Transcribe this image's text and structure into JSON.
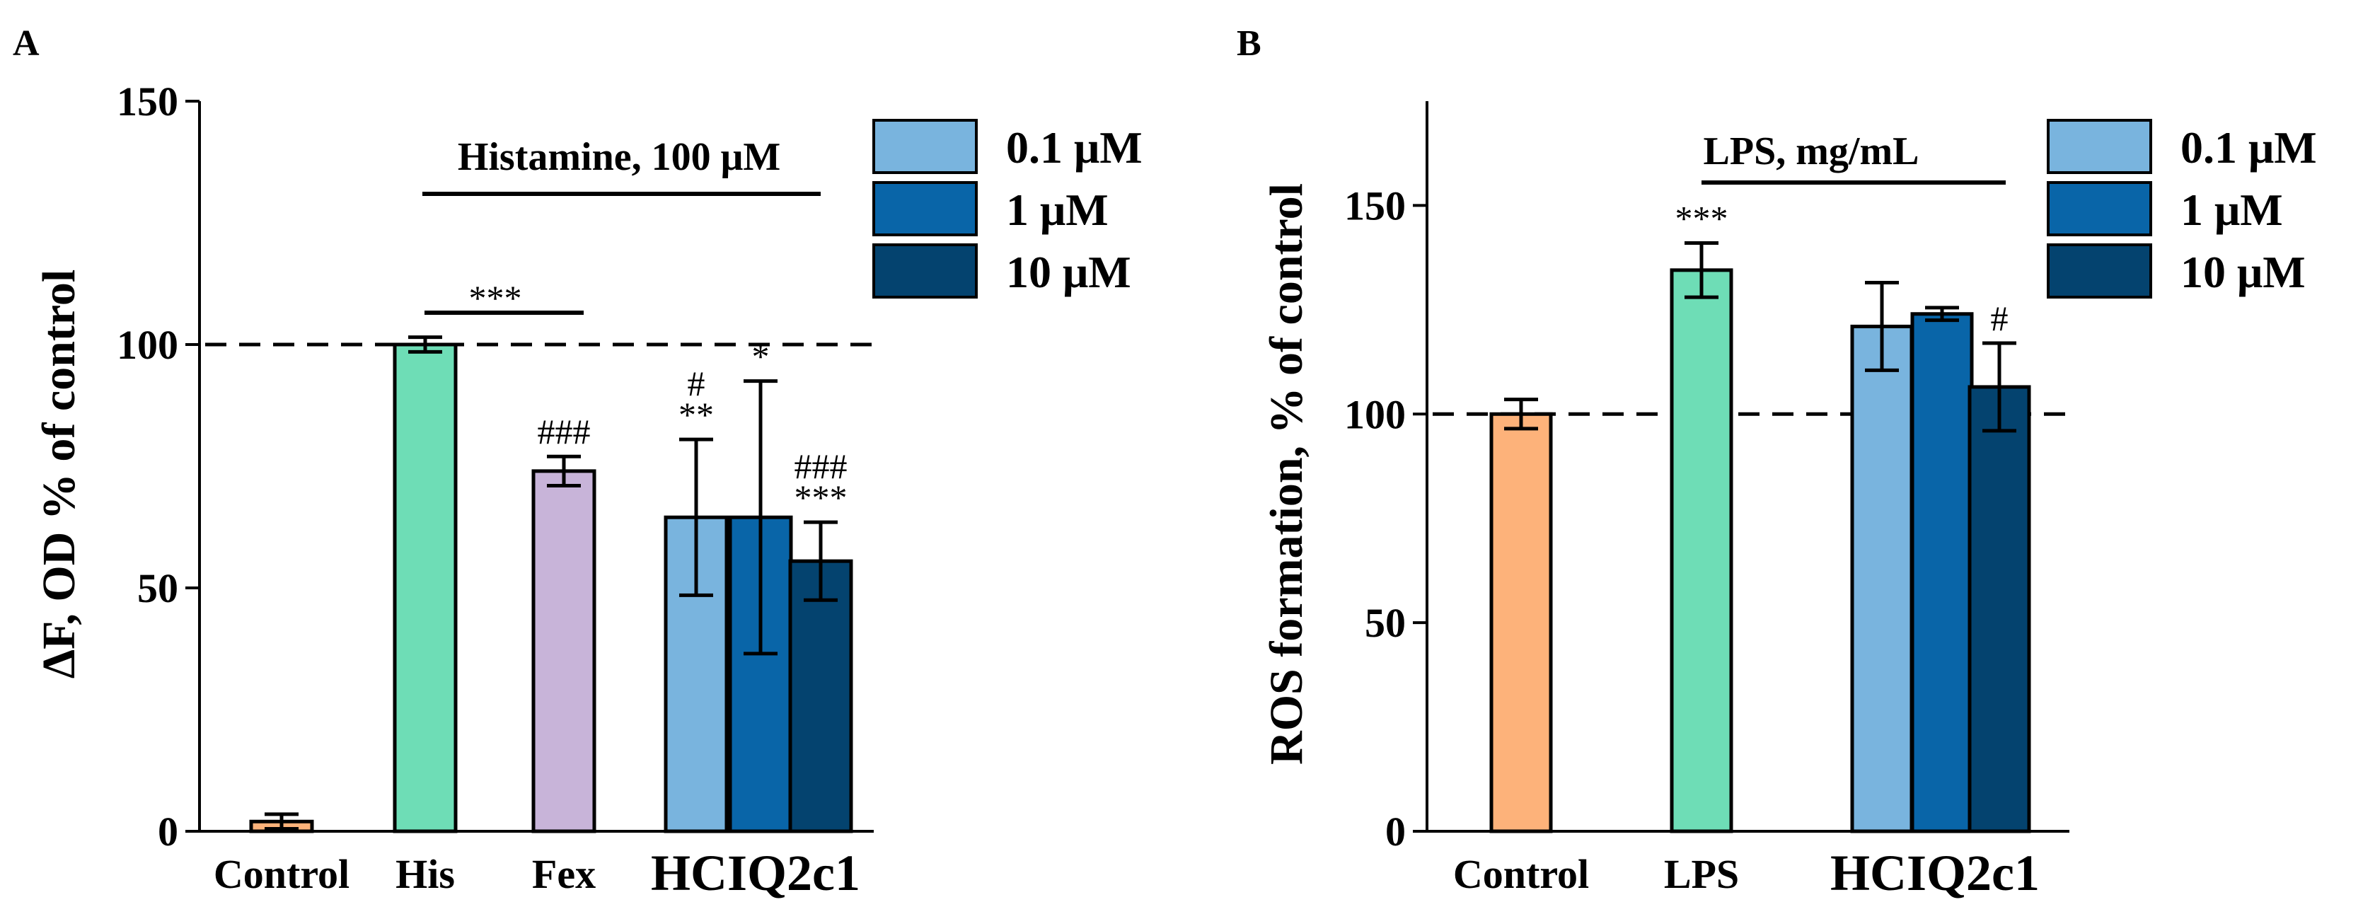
{
  "colors": {
    "control": "#FDB27A",
    "stimulus": "#6EDDB6",
    "fex": "#C8B4D9",
    "c01": "#79B4DE",
    "c1": "#0965A8",
    "c10": "#04436F"
  },
  "chart_data": [
    {
      "panel": "A",
      "type": "bar",
      "ylabel": "ΔF, OD % of control",
      "ylim": [
        0,
        150
      ],
      "yticks": [
        "0",
        "50",
        "100",
        "150"
      ],
      "reference_line": 100,
      "categories": [
        "Control",
        "His",
        "Fex",
        "HCIQ2c1"
      ],
      "bars": [
        {
          "name": "control-bar",
          "value": 2,
          "error": 1.5,
          "color_key": "control",
          "sig": []
        },
        {
          "name": "his-bar",
          "value": 100,
          "error": 1.5,
          "color_key": "stimulus",
          "sig": []
        },
        {
          "name": "fex-bar",
          "value": 74,
          "error": 3,
          "color_key": "fex",
          "sig": [
            "###"
          ]
        },
        {
          "name": "hciq2c1-0.1uM-bar",
          "value": 64.5,
          "error": 16,
          "color_key": "c01",
          "sig": [
            "**",
            "#"
          ]
        },
        {
          "name": "hciq2c1-1uM-bar",
          "value": 64.5,
          "error": 28,
          "color_key": "c1",
          "sig": [
            "*"
          ]
        },
        {
          "name": "hciq2c1-10uM-bar",
          "value": 55.5,
          "error": 8,
          "color_key": "c10",
          "sig": [
            "***",
            "###"
          ]
        }
      ],
      "annotations": {
        "treatment": "Histamine, 100 μM",
        "bracket": "***"
      },
      "legend": [
        "0.1 μM",
        "1 μM",
        "10 μM"
      ]
    },
    {
      "panel": "B",
      "type": "bar",
      "ylabel": "ROS formation, % of control",
      "ylim": [
        0,
        175
      ],
      "yticks": [
        "0",
        "50",
        "100",
        "150"
      ],
      "reference_line": 100,
      "categories": [
        "Control",
        "LPS",
        "HCIQ2c1"
      ],
      "bars": [
        {
          "name": "control-bar",
          "value": 100,
          "error": 3.5,
          "color_key": "control",
          "sig": []
        },
        {
          "name": "lps-bar",
          "value": 134.5,
          "error": 6.5,
          "color_key": "stimulus",
          "sig": [
            "***"
          ]
        },
        {
          "name": "hciq2c1-0.1uM-bar",
          "value": 121,
          "error": 10.5,
          "color_key": "c01",
          "sig": []
        },
        {
          "name": "hciq2c1-1uM-bar",
          "value": 124,
          "error": 1.5,
          "color_key": "c1",
          "sig": []
        },
        {
          "name": "hciq2c1-10uM-bar",
          "value": 106.5,
          "error": 10.5,
          "color_key": "c10",
          "sig": [
            "#"
          ]
        }
      ],
      "annotations": {
        "treatment": "LPS, mg/mL"
      },
      "legend": [
        "0.1 μM",
        "1 μM",
        "10 μM"
      ]
    }
  ]
}
